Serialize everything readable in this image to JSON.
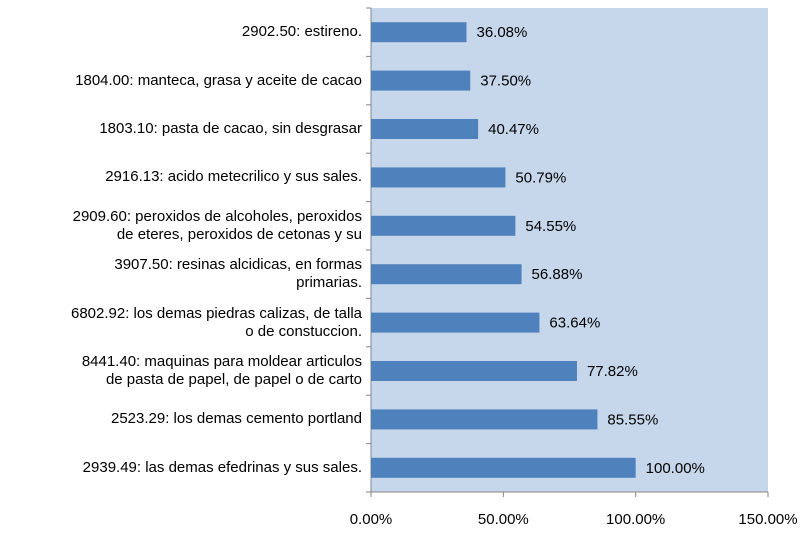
{
  "chart_data": {
    "type": "bar",
    "orientation": "horizontal",
    "categories": [
      "2902.50: estireno.",
      "1804.00: manteca, grasa y aceite de cacao",
      "1803.10: pasta de cacao, sin desgrasar",
      "2916.13: acido metecrilico y sus sales.",
      "2909.60: peroxidos de alcoholes, peroxidos\nde eteres, peroxidos de cetonas y su",
      "3907.50: resinas alcidicas, en formas\nprimarias.",
      "6802.92: los demas piedras calizas, de talla\no de constuccion.",
      "8441.40: maquinas para moldear articulos\nde pasta de papel, de papel o de carto",
      "2523.29: los demas cemento portland",
      "2939.49: las demas efedrinas y sus sales."
    ],
    "values": [
      36.08,
      37.5,
      40.47,
      50.79,
      54.55,
      56.88,
      63.64,
      77.82,
      85.55,
      100
    ],
    "value_labels": [
      "36.08%",
      "37.50%",
      "40.47%",
      "50.79%",
      "54.55%",
      "56.88%",
      "63.64%",
      "77.82%",
      "85.55%",
      "100.00%"
    ],
    "color": "#4f81bd",
    "plot_background": "#c6d7ec",
    "xlim": [
      0,
      150
    ],
    "xticks": [
      {
        "value": 0,
        "label": "0.00%"
      },
      {
        "value": 50,
        "label": "50.00%"
      },
      {
        "value": 100,
        "label": "100.00%"
      },
      {
        "value": 150,
        "label": "150.00%"
      }
    ]
  }
}
